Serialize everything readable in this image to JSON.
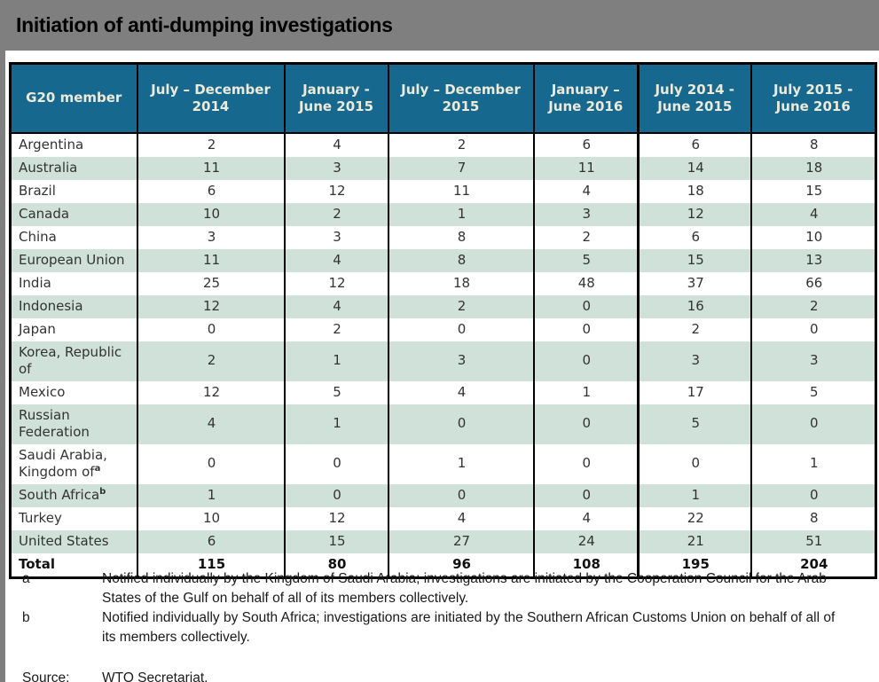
{
  "title": "Initiation of anti-dumping investigations",
  "table": {
    "headers": [
      "G20 member",
      "July – December 2014",
      "January - June 2015",
      "July – December 2015",
      "January – June 2016",
      "July 2014 - June 2015",
      "July 2015 - June 2016"
    ],
    "rows": [
      {
        "member": "Argentina",
        "values": [
          "2",
          "4",
          "2",
          "6",
          "6",
          "8"
        ]
      },
      {
        "member": "Australia",
        "values": [
          "11",
          "3",
          "7",
          "11",
          "14",
          "18"
        ]
      },
      {
        "member": "Brazil",
        "values": [
          "6",
          "12",
          "11",
          "4",
          "18",
          "15"
        ]
      },
      {
        "member": "Canada",
        "values": [
          "10",
          "2",
          "1",
          "3",
          "12",
          "4"
        ]
      },
      {
        "member": "China",
        "values": [
          "3",
          "3",
          "8",
          "2",
          "6",
          "10"
        ]
      },
      {
        "member": "European Union",
        "values": [
          "11",
          "4",
          "8",
          "5",
          "15",
          "13"
        ]
      },
      {
        "member": "India",
        "values": [
          "25",
          "12",
          "18",
          "48",
          "37",
          "66"
        ]
      },
      {
        "member": "Indonesia",
        "values": [
          "12",
          "4",
          "2",
          "0",
          "16",
          "2"
        ]
      },
      {
        "member": "Japan",
        "values": [
          "0",
          "2",
          "0",
          "0",
          "2",
          "0"
        ]
      },
      {
        "member": "Korea,  Republic of",
        "values": [
          "2",
          "1",
          "3",
          "0",
          "3",
          "3"
        ]
      },
      {
        "member": "Mexico",
        "values": [
          "12",
          "5",
          "4",
          "1",
          "17",
          "5"
        ]
      },
      {
        "member": "Russian Federation",
        "values": [
          "4",
          "1",
          "0",
          "0",
          "5",
          "0"
        ]
      },
      {
        "member": "Saudi Arabia, Kingdom of",
        "sup": "a",
        "values": [
          "0",
          "0",
          "1",
          "0",
          "0",
          "1"
        ]
      },
      {
        "member": "South Africa",
        "sup": "b",
        "values": [
          "1",
          "0",
          "0",
          "0",
          "1",
          "0"
        ]
      },
      {
        "member": "Turkey",
        "values": [
          "10",
          "12",
          "4",
          "4",
          "22",
          "8"
        ]
      },
      {
        "member": "United States",
        "values": [
          "6",
          "15",
          "27",
          "24",
          "21",
          "51"
        ]
      },
      {
        "member": "Total",
        "bold": true,
        "values": [
          "115",
          "80",
          "96",
          "108",
          "195",
          "204"
        ]
      }
    ]
  },
  "footnotes": [
    {
      "marker": "a",
      "text": "Notified individually by the Kingdom of Saudi Arabia; investigations are initiated by the Cooperation Council for the Arab States of the Gulf on behalf of all of its members collectively."
    },
    {
      "marker": "b",
      "text": "Notified individually by South Africa; investigations are initiated by the Southern African Customs Union on behalf of all of its members collectively."
    }
  ],
  "source": {
    "label": "Source:",
    "text": "WTO Secretariat."
  },
  "colors": {
    "title_bar_bg": "#7f7f7f",
    "header_bg": "#17688e",
    "header_text": "#eceadb",
    "row_alt_bg": "#cfe1d8",
    "border": "#000000"
  }
}
